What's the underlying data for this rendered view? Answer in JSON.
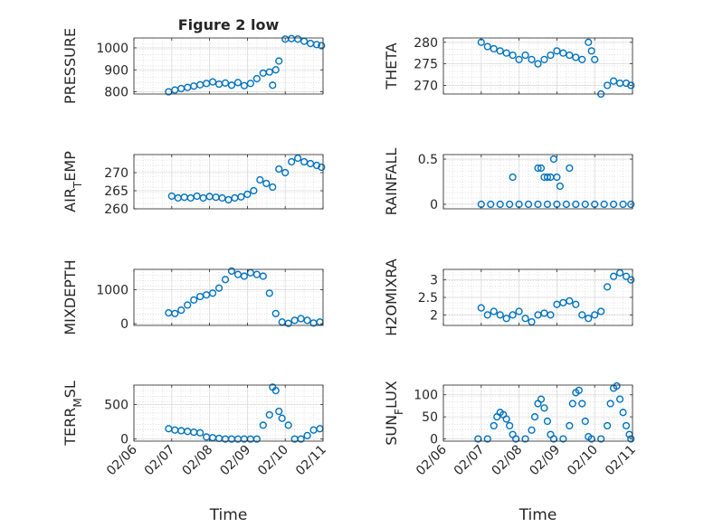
{
  "chart_data": [
    {
      "type": "scatter",
      "title": "Figure 2 low",
      "ylabel": "PRESSURE",
      "xlabel": "",
      "ylim": [
        790,
        1045
      ],
      "yticks": [
        "800",
        "900",
        "1000"
      ],
      "ytick_values": [
        800,
        900,
        1000
      ],
      "xlim": [
        "02/06",
        "02/11"
      ],
      "xticks": [
        "02/06",
        "02/07",
        "02/08",
        "02/09",
        "02/10",
        "02/11"
      ],
      "grid": true,
      "marker_color": "#0072BD",
      "x": [
        "02/06 22:00",
        "02/07 02:00",
        "02/07 06:00",
        "02/07 10:00",
        "02/07 14:00",
        "02/07 18:00",
        "02/07 22:00",
        "02/08 02:00",
        "02/08 06:00",
        "02/08 10:00",
        "02/08 14:00",
        "02/08 18:00",
        "02/08 22:00",
        "02/09 02:00",
        "02/09 06:00",
        "02/09 10:00",
        "02/09 14:00",
        "02/09 16:00",
        "02/09 18:00",
        "02/09 20:00",
        "02/10 00:00",
        "02/10 04:00",
        "02/10 08:00",
        "02/10 12:00",
        "02/10 16:00",
        "02/10 20:00",
        "02/10 23:00"
      ],
      "y": [
        800,
        808,
        815,
        820,
        826,
        832,
        838,
        845,
        835,
        840,
        830,
        842,
        828,
        838,
        860,
        885,
        890,
        830,
        900,
        940,
        1040,
        1042,
        1040,
        1030,
        1020,
        1015,
        1010
      ]
    },
    {
      "type": "scatter",
      "title": "",
      "ylabel": "THETA",
      "xlabel": "",
      "ylim": [
        268,
        281
      ],
      "yticks": [
        "270",
        "275",
        "280"
      ],
      "ytick_values": [
        270,
        275,
        280
      ],
      "xlim": [
        "02/06",
        "02/11"
      ],
      "xticks": [
        "02/06",
        "02/07",
        "02/08",
        "02/09",
        "02/10",
        "02/11"
      ],
      "grid": true,
      "marker_color": "#0072BD",
      "x": [
        "02/07 00:00",
        "02/07 04:00",
        "02/07 08:00",
        "02/07 12:00",
        "02/07 16:00",
        "02/07 20:00",
        "02/08 00:00",
        "02/08 04:00",
        "02/08 08:00",
        "02/08 12:00",
        "02/08 16:00",
        "02/08 20:00",
        "02/09 00:00",
        "02/09 04:00",
        "02/09 08:00",
        "02/09 12:00",
        "02/09 16:00",
        "02/09 20:00",
        "02/09 22:00",
        "02/10 00:00",
        "02/10 04:00",
        "02/10 08:00",
        "02/10 12:00",
        "02/10 16:00",
        "02/10 20:00",
        "02/10 23:00"
      ],
      "y": [
        280,
        279,
        278.5,
        278,
        277.5,
        277,
        276,
        277,
        276,
        275,
        276,
        277,
        278,
        277.5,
        277,
        276.5,
        276,
        280,
        278,
        276,
        268,
        270,
        271,
        270.5,
        270.5,
        270
      ]
    },
    {
      "type": "scatter",
      "title": "",
      "ylabel": "AIR_TEMP",
      "xlabel": "",
      "ylim": [
        260,
        275
      ],
      "yticks": [
        "260",
        "265",
        "270"
      ],
      "ytick_values": [
        260,
        265,
        270
      ],
      "xlim": [
        "02/06",
        "02/11"
      ],
      "xticks": [
        "02/06",
        "02/07",
        "02/08",
        "02/09",
        "02/10",
        "02/11"
      ],
      "grid": true,
      "marker_color": "#0072BD",
      "x": [
        "02/07 00:00",
        "02/07 04:00",
        "02/07 08:00",
        "02/07 12:00",
        "02/07 16:00",
        "02/07 20:00",
        "02/08 00:00",
        "02/08 04:00",
        "02/08 08:00",
        "02/08 12:00",
        "02/08 16:00",
        "02/08 20:00",
        "02/09 00:00",
        "02/09 04:00",
        "02/09 08:00",
        "02/09 12:00",
        "02/09 16:00",
        "02/09 20:00",
        "02/10 00:00",
        "02/10 04:00",
        "02/10 08:00",
        "02/10 12:00",
        "02/10 16:00",
        "02/10 20:00",
        "02/10 23:00"
      ],
      "y": [
        263.5,
        263,
        263.2,
        263,
        263.5,
        263,
        263.4,
        263.2,
        263,
        262.5,
        263,
        263.3,
        264,
        265,
        268,
        267,
        266,
        271,
        270,
        273,
        274,
        273,
        272.5,
        272,
        271.5
      ]
    },
    {
      "type": "scatter",
      "title": "",
      "ylabel": "RAINFALL",
      "xlabel": "",
      "ylim": [
        -0.05,
        0.55
      ],
      "yticks": [
        "0",
        "0.5"
      ],
      "ytick_values": [
        0,
        0.5
      ],
      "xlim": [
        "02/06",
        "02/11"
      ],
      "xticks": [
        "02/06",
        "02/07",
        "02/08",
        "02/09",
        "02/10",
        "02/11"
      ],
      "grid": true,
      "marker_color": "#0072BD",
      "x": [
        "02/07 00:00",
        "02/07 06:00",
        "02/07 12:00",
        "02/07 18:00",
        "02/08 00:00",
        "02/08 06:00",
        "02/08 12:00",
        "02/08 18:00",
        "02/09 00:00",
        "02/09 06:00",
        "02/09 12:00",
        "02/09 18:00",
        "02/10 00:00",
        "02/10 06:00",
        "02/10 12:00",
        "02/10 18:00",
        "02/10 23:00",
        "02/07 20:00",
        "02/08 12:00",
        "02/08 16:00",
        "02/08 18:00",
        "02/08 20:00",
        "02/08 22:00",
        "02/09 00:00",
        "02/09 02:00",
        "02/08 14:00",
        "02/09 08:00"
      ],
      "y": [
        0,
        0,
        0,
        0,
        0,
        0,
        0,
        0,
        0,
        0,
        0,
        0,
        0,
        0,
        0,
        0,
        0,
        0.3,
        0.4,
        0.3,
        0.3,
        0.3,
        0.5,
        0.3,
        0.2,
        0.4,
        0.4
      ]
    },
    {
      "type": "scatter",
      "title": "",
      "ylabel": "MIXDEPTH",
      "xlabel": "",
      "ylim": [
        -50,
        1600
      ],
      "yticks": [
        "0",
        "1000"
      ],
      "ytick_values": [
        0,
        1000
      ],
      "xlim": [
        "02/06",
        "02/11"
      ],
      "xticks": [
        "02/06",
        "02/07",
        "02/08",
        "02/09",
        "02/10",
        "02/11"
      ],
      "grid": true,
      "marker_color": "#0072BD",
      "x": [
        "02/06 22:00",
        "02/07 02:00",
        "02/07 06:00",
        "02/07 10:00",
        "02/07 14:00",
        "02/07 18:00",
        "02/07 22:00",
        "02/08 02:00",
        "02/08 06:00",
        "02/08 10:00",
        "02/08 14:00",
        "02/08 18:00",
        "02/08 22:00",
        "02/09 02:00",
        "02/09 06:00",
        "02/09 10:00",
        "02/09 14:00",
        "02/09 18:00",
        "02/09 22:00",
        "02/10 02:00",
        "02/10 06:00",
        "02/10 10:00",
        "02/10 14:00",
        "02/10 18:00",
        "02/10 22:00"
      ],
      "y": [
        320,
        300,
        400,
        550,
        700,
        800,
        850,
        900,
        1050,
        1300,
        1550,
        1450,
        1400,
        1500,
        1450,
        1400,
        900,
        300,
        50,
        10,
        100,
        150,
        100,
        20,
        50
      ]
    },
    {
      "type": "scatter",
      "title": "",
      "ylabel": "H2OMIXRA",
      "xlabel": "",
      "ylim": [
        1.7,
        3.3
      ],
      "yticks": [
        "2",
        "2.5",
        "3"
      ],
      "ytick_values": [
        2,
        2.5,
        3
      ],
      "xlim": [
        "02/06",
        "02/11"
      ],
      "xticks": [
        "02/06",
        "02/07",
        "02/08",
        "02/09",
        "02/10",
        "02/11"
      ],
      "grid": true,
      "marker_color": "#0072BD",
      "x": [
        "02/07 00:00",
        "02/07 04:00",
        "02/07 08:00",
        "02/07 12:00",
        "02/07 16:00",
        "02/07 20:00",
        "02/08 00:00",
        "02/08 04:00",
        "02/08 08:00",
        "02/08 12:00",
        "02/08 16:00",
        "02/08 20:00",
        "02/09 00:00",
        "02/09 04:00",
        "02/09 08:00",
        "02/09 12:00",
        "02/09 16:00",
        "02/09 20:00",
        "02/10 00:00",
        "02/10 04:00",
        "02/10 08:00",
        "02/10 12:00",
        "02/10 16:00",
        "02/10 20:00",
        "02/10 23:00"
      ],
      "y": [
        2.2,
        2.0,
        2.1,
        2.0,
        1.9,
        2.0,
        2.1,
        1.9,
        1.8,
        2.0,
        2.05,
        2.0,
        2.3,
        2.35,
        2.4,
        2.3,
        2.0,
        1.9,
        2.0,
        2.1,
        2.8,
        3.1,
        3.2,
        3.1,
        3.0
      ]
    },
    {
      "type": "scatter",
      "title": "",
      "ylabel": "TERR_MSL",
      "xlabel": "Time",
      "ylim": [
        -30,
        780
      ],
      "yticks": [
        "0",
        "500"
      ],
      "ytick_values": [
        0,
        500
      ],
      "xlim": [
        "02/06",
        "02/11"
      ],
      "xticks": [
        "02/06",
        "02/07",
        "02/08",
        "02/09",
        "02/10",
        "02/11"
      ],
      "grid": true,
      "marker_color": "#0072BD",
      "x": [
        "02/06 22:00",
        "02/07 02:00",
        "02/07 06:00",
        "02/07 10:00",
        "02/07 14:00",
        "02/07 18:00",
        "02/07 22:00",
        "02/08 02:00",
        "02/08 06:00",
        "02/08 10:00",
        "02/08 14:00",
        "02/08 18:00",
        "02/08 22:00",
        "02/09 02:00",
        "02/09 06:00",
        "02/09 10:00",
        "02/09 14:00",
        "02/09 16:00",
        "02/09 18:00",
        "02/09 20:00",
        "02/09 22:00",
        "02/10 02:00",
        "02/10 06:00",
        "02/10 10:00",
        "02/10 14:00",
        "02/10 18:00",
        "02/10 22:00"
      ],
      "y": [
        150,
        130,
        120,
        110,
        100,
        90,
        30,
        20,
        10,
        0,
        0,
        0,
        0,
        0,
        0,
        200,
        350,
        750,
        700,
        400,
        300,
        200,
        0,
        0,
        50,
        130,
        150
      ]
    },
    {
      "type": "scatter",
      "title": "",
      "ylabel": "SUN_FLUX",
      "xlabel": "Time",
      "ylim": [
        -5,
        122
      ],
      "yticks": [
        "0",
        "50",
        "100"
      ],
      "ytick_values": [
        0,
        50,
        100
      ],
      "xlim": [
        "02/06",
        "02/11"
      ],
      "xticks": [
        "02/06",
        "02/07",
        "02/08",
        "02/09",
        "02/10",
        "02/11"
      ],
      "grid": true,
      "marker_color": "#0072BD",
      "x": [
        "02/06 22:00",
        "02/07 04:00",
        "02/07 08:00",
        "02/07 10:00",
        "02/07 12:00",
        "02/07 14:00",
        "02/07 16:00",
        "02/07 18:00",
        "02/07 20:00",
        "02/07 22:00",
        "02/08 04:00",
        "02/08 08:00",
        "02/08 10:00",
        "02/08 12:00",
        "02/08 14:00",
        "02/08 16:00",
        "02/08 18:00",
        "02/08 20:00",
        "02/08 22:00",
        "02/09 04:00",
        "02/09 08:00",
        "02/09 10:00",
        "02/09 12:00",
        "02/09 14:00",
        "02/09 16:00",
        "02/09 18:00",
        "02/09 20:00",
        "02/09 22:00",
        "02/10 04:00",
        "02/10 08:00",
        "02/10 10:00",
        "02/10 12:00",
        "02/10 14:00",
        "02/10 16:00",
        "02/10 18:00",
        "02/10 20:00",
        "02/10 22:00",
        "02/10 23:00"
      ],
      "y": [
        0,
        0,
        30,
        50,
        60,
        55,
        45,
        30,
        10,
        0,
        0,
        20,
        50,
        80,
        90,
        70,
        40,
        10,
        0,
        0,
        30,
        80,
        105,
        110,
        80,
        40,
        5,
        0,
        0,
        30,
        80,
        115,
        120,
        90,
        60,
        30,
        10,
        0
      ]
    }
  ]
}
